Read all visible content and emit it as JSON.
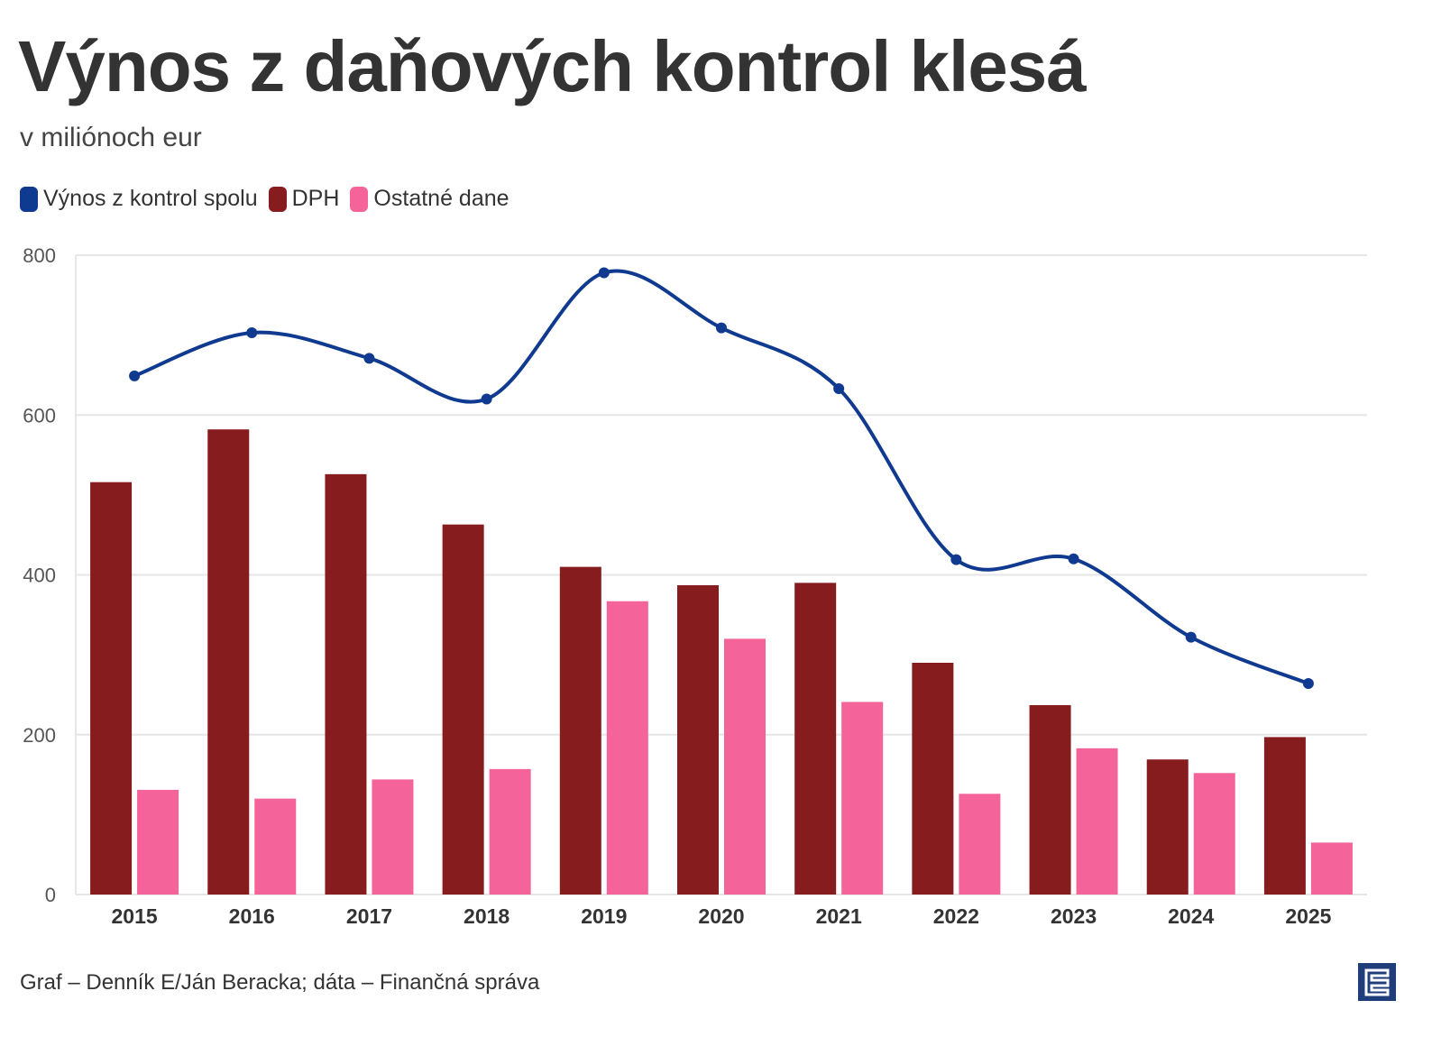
{
  "chart_data": {
    "type": "bar",
    "title": "Výnos z daňových kontrol klesá",
    "subtitle": "v miliónoch eur",
    "xlabel": "",
    "ylabel": "",
    "ylim": [
      0,
      800
    ],
    "yticks": [
      "0",
      "200",
      "400",
      "600",
      "800"
    ],
    "categories": [
      "2015",
      "2016",
      "2017",
      "2018",
      "2019",
      "2020",
      "2021",
      "2022",
      "2023",
      "2024",
      "2025"
    ],
    "series": [
      {
        "name": "Výnos z kontrol spolu",
        "type": "line",
        "color": "#0f3a8f",
        "values": [
          649,
          703,
          671,
          620,
          778,
          709,
          633,
          419,
          420,
          322,
          264
        ]
      },
      {
        "name": "DPH",
        "type": "bar",
        "color": "#861c1e",
        "values": [
          516,
          582,
          526,
          463,
          410,
          387,
          390,
          290,
          237,
          169,
          197
        ]
      },
      {
        "name": "Ostatné dane",
        "type": "bar",
        "color": "#f46399",
        "values": [
          131,
          120,
          144,
          157,
          367,
          320,
          241,
          126,
          183,
          152,
          65
        ]
      }
    ],
    "legend": "top-left",
    "grid": true
  },
  "source": "Graf – Denník E/Ján Beracka; dáta – Finančná správa",
  "logo": "E"
}
